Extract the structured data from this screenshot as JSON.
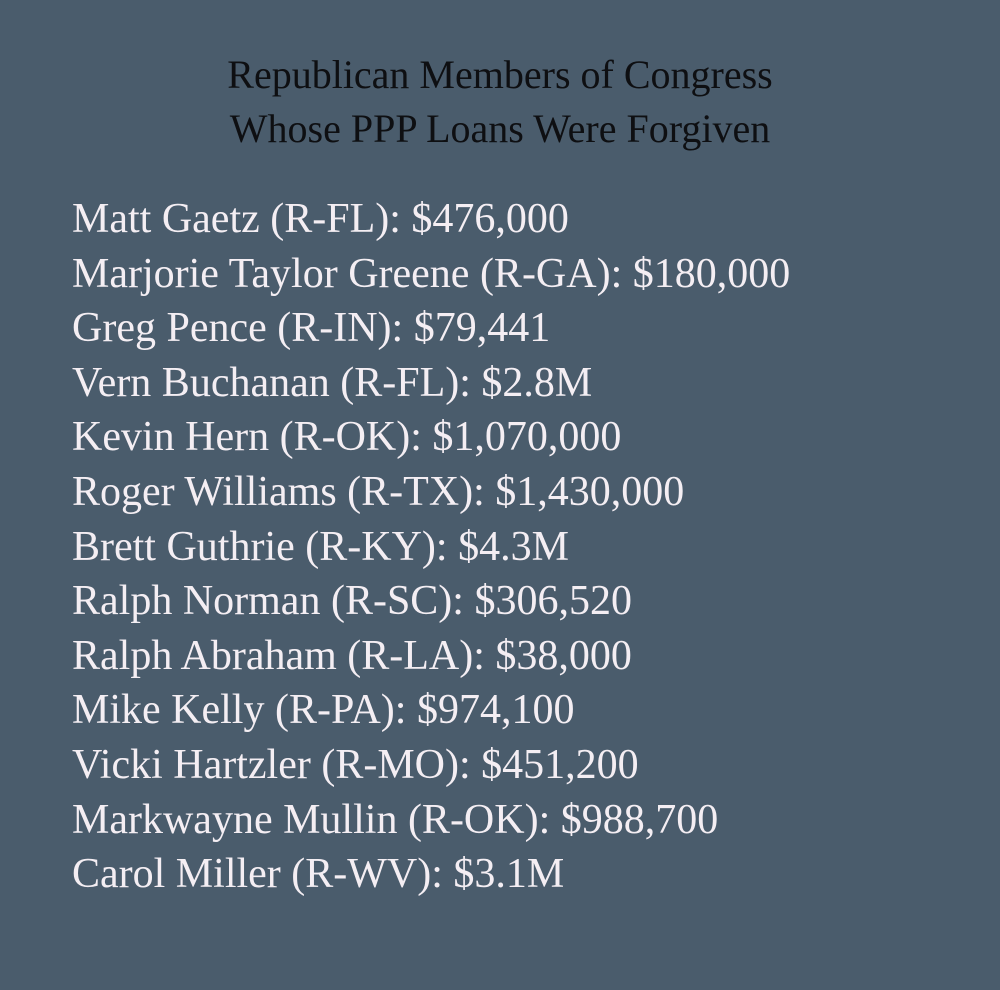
{
  "title": [
    "Republican Members of Congress",
    "Whose PPP Loans Were Forgiven"
  ],
  "items": [
    "Matt Gaetz (R-FL): $476,000",
    "Marjorie Taylor Greene (R-GA): $180,000",
    "Greg Pence (R-IN): $79,441",
    "Vern Buchanan (R-FL): $2.8M",
    "Kevin Hern (R-OK): $1,070,000",
    "Roger Williams (R-TX): $1,430,000",
    "Brett Guthrie (R-KY): $4.3M",
    "Ralph Norman (R-SC): $306,520",
    "Ralph Abraham (R-LA): $38,000",
    "Mike Kelly (R-PA): $974,100",
    "Vicki Hartzler (R-MO): $451,200",
    "Markwayne Mullin (R-OK): $988,700",
    "Carol Miller (R-WV): $3.1M"
  ]
}
